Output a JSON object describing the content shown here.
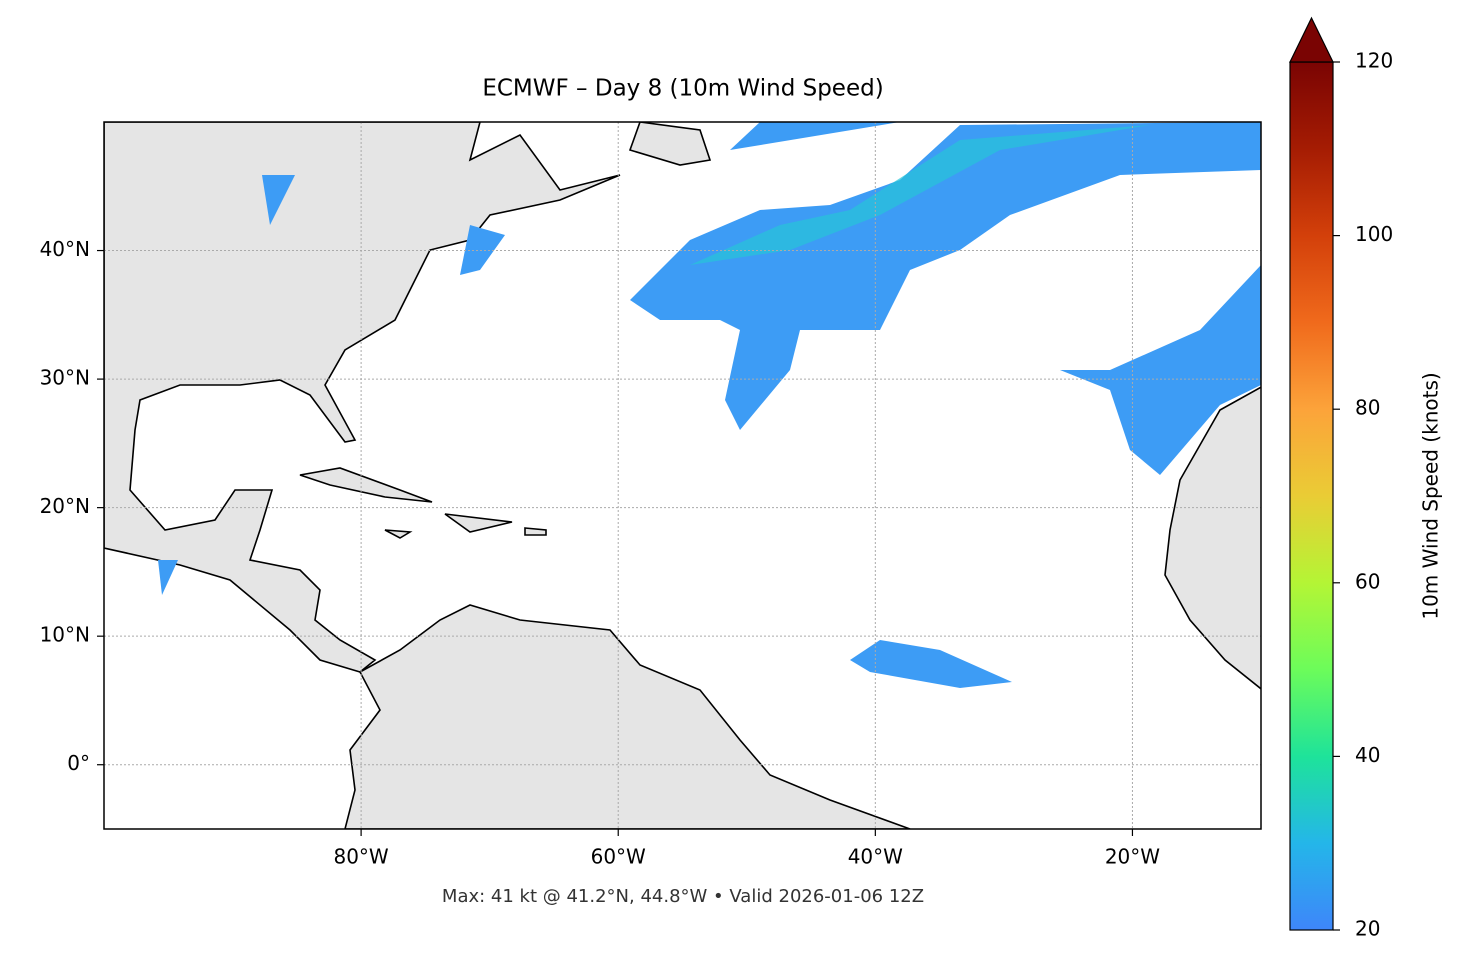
{
  "title": "ECMWF – Day 8 (10m Wind Speed)",
  "footer": "Max: 41 kt @ 41.2°N, 44.8°W • Valid 2026-01-06 12Z",
  "map": {
    "lonlim": [
      -100,
      -10
    ],
    "latlim": [
      -5,
      50
    ],
    "grid": true,
    "xticks": [
      {
        "value": -80,
        "label": "80°W"
      },
      {
        "value": -60,
        "label": "60°W"
      },
      {
        "value": -40,
        "label": "40°W"
      },
      {
        "value": -20,
        "label": "20°W"
      }
    ],
    "yticks": [
      {
        "value": 0,
        "label": "0°"
      },
      {
        "value": 10,
        "label": "10°N"
      },
      {
        "value": 20,
        "label": "20°N"
      },
      {
        "value": 30,
        "label": "30°N"
      },
      {
        "value": 40,
        "label": "40°N"
      }
    ]
  },
  "colorbar": {
    "label": "10m Wind Speed (knots)",
    "lim": [
      20,
      120
    ],
    "ticks": [
      20,
      40,
      60,
      80,
      100,
      120
    ],
    "extend": "max"
  }
}
